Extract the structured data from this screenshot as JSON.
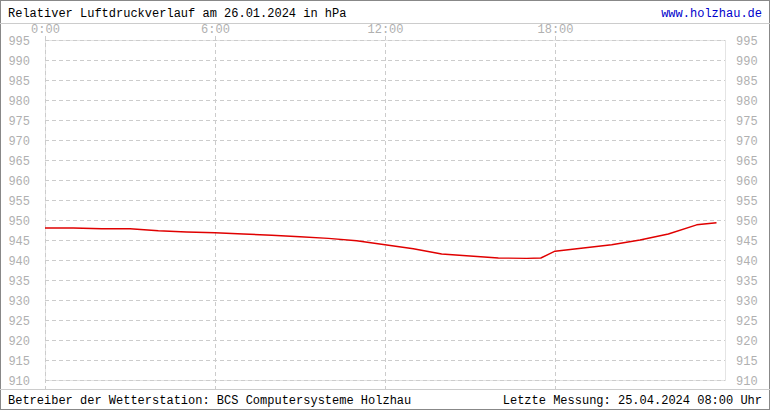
{
  "chart_data": {
    "type": "line",
    "title": "Relativer Luftdruckverlauf am 26.01.2024 in hPa",
    "annotations": [
      "www.holzhau.de",
      "Betreiber der Wetterstation: BCS Computersysteme Holzhau",
      "Letzte Messung: 25.04.2024 08:00 Uhr"
    ],
    "x": [
      0,
      1,
      2,
      3,
      4,
      5,
      6,
      7,
      8,
      9,
      10,
      11,
      12,
      13,
      14,
      15,
      16,
      17,
      17.5,
      18,
      19,
      20,
      21,
      22,
      23,
      23.7
    ],
    "values": [
      948.0,
      948.0,
      947.8,
      947.8,
      947.3,
      947.0,
      946.8,
      946.5,
      946.2,
      945.8,
      945.4,
      944.8,
      943.8,
      942.8,
      941.5,
      941.0,
      940.5,
      940.4,
      940.5,
      942.2,
      943.0,
      943.8,
      945.0,
      946.5,
      948.8,
      949.3
    ],
    "color": "#e00000",
    "xlim": [
      0,
      24
    ],
    "xticks": [
      {
        "value": 0,
        "label": "0:00"
      },
      {
        "value": 6,
        "label": "6:00"
      },
      {
        "value": 12,
        "label": "12:00"
      },
      {
        "value": 18,
        "label": "18:00"
      }
    ],
    "ylim": [
      910,
      995
    ],
    "yticks": [
      910,
      915,
      920,
      925,
      930,
      935,
      940,
      945,
      950,
      955,
      960,
      965,
      970,
      975,
      980,
      985,
      990,
      995
    ],
    "grid": true
  }
}
